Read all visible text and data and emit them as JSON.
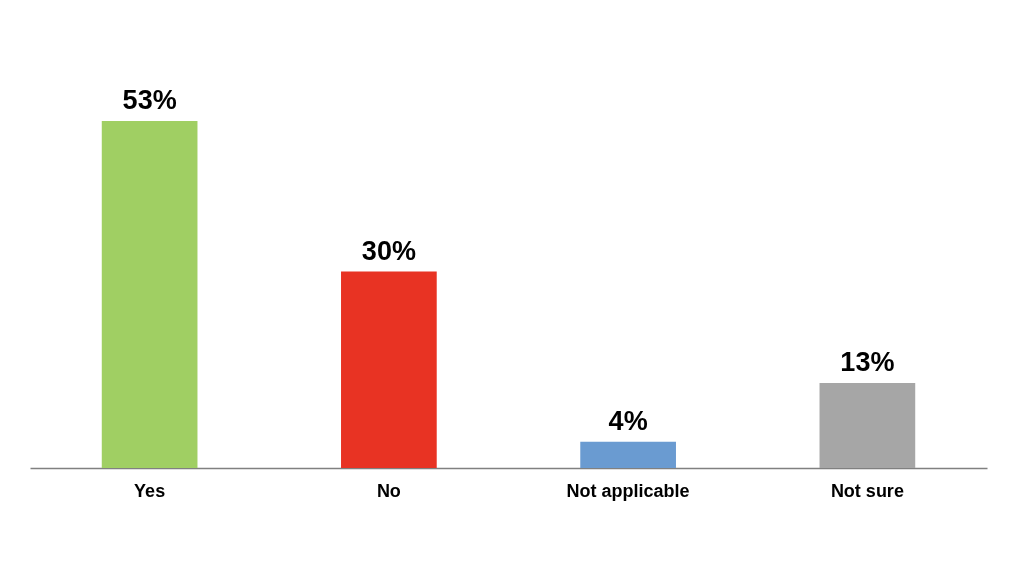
{
  "chart_data": {
    "type": "bar",
    "categories": [
      "Yes",
      "No",
      "Not applicable",
      "Not sure"
    ],
    "values": [
      53,
      30,
      4,
      13
    ],
    "value_labels": [
      "53%",
      "30%",
      "4%",
      "13%"
    ],
    "colors": [
      "#a0cf63",
      "#e83323",
      "#6a9bd1",
      "#a6a6a6"
    ],
    "legend": false,
    "grid": false
  }
}
